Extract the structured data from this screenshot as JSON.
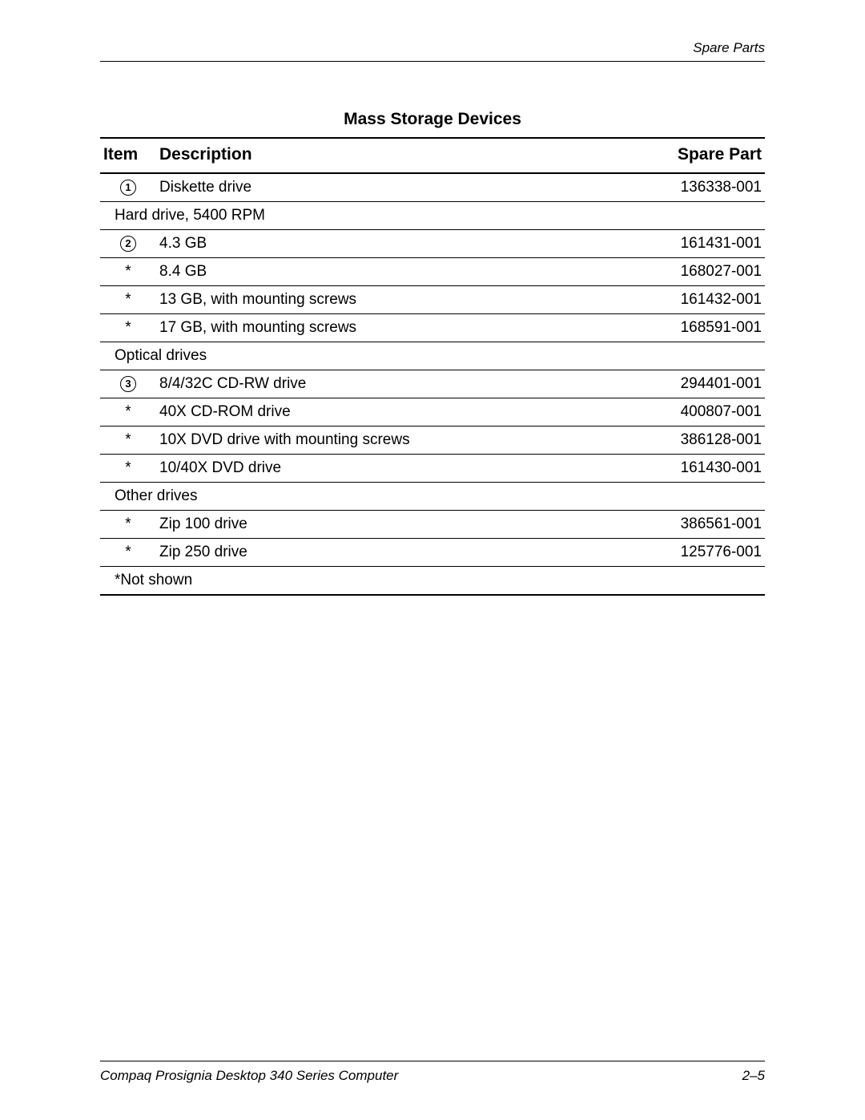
{
  "header": {
    "section": "Spare Parts"
  },
  "table": {
    "title": "Mass Storage Devices",
    "columns": {
      "item": "Item",
      "description": "Description",
      "spare_part": "Spare Part"
    },
    "rows": [
      {
        "type": "data",
        "item_kind": "circled",
        "item": "1",
        "description": "Diskette drive",
        "part": "136338-001"
      },
      {
        "type": "section",
        "label": "Hard drive, 5400 RPM"
      },
      {
        "type": "data",
        "item_kind": "circled",
        "item": "2",
        "description": "4.3 GB",
        "part": "161431-001"
      },
      {
        "type": "data",
        "item_kind": "star",
        "item": "*",
        "description": "8.4 GB",
        "part": "168027-001"
      },
      {
        "type": "data",
        "item_kind": "star",
        "item": "*",
        "description": "13 GB, with mounting screws",
        "part": "161432-001"
      },
      {
        "type": "data",
        "item_kind": "star",
        "item": "*",
        "description": "17 GB, with mounting screws",
        "part": "168591-001"
      },
      {
        "type": "section",
        "label": "Optical drives"
      },
      {
        "type": "data",
        "item_kind": "circled",
        "item": "3",
        "description": "8/4/32C CD-RW drive",
        "part": "294401-001"
      },
      {
        "type": "data",
        "item_kind": "star",
        "item": "*",
        "description": "40X CD-ROM drive",
        "part": "400807-001"
      },
      {
        "type": "data",
        "item_kind": "star",
        "item": "*",
        "description": "10X DVD drive with mounting screws",
        "part": "386128-001"
      },
      {
        "type": "data",
        "item_kind": "star",
        "item": "*",
        "description": "10/40X DVD drive",
        "part": "161430-001"
      },
      {
        "type": "section",
        "label": "Other drives"
      },
      {
        "type": "data",
        "item_kind": "star",
        "item": "*",
        "description": "Zip 100 drive",
        "part": "386561-001"
      },
      {
        "type": "data",
        "item_kind": "star",
        "item": "*",
        "description": "Zip 250 drive",
        "part": "125776-001"
      },
      {
        "type": "footnote",
        "label": "*Not shown"
      }
    ]
  },
  "footer": {
    "left": "Compaq Prosignia Desktop 340 Series Computer",
    "right": "2–5"
  },
  "colors": {
    "text": "#000000",
    "background": "#ffffff",
    "rule": "#000000"
  }
}
